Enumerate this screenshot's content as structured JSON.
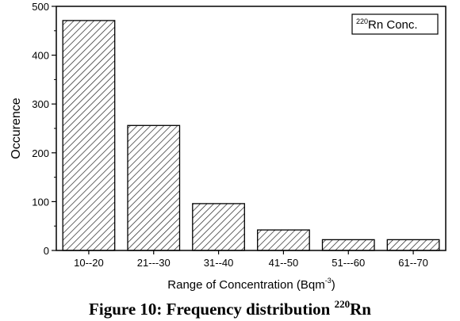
{
  "chart_data": {
    "type": "bar",
    "categories": [
      "10--20",
      "21---30",
      "31--40",
      "41--50",
      "51---60",
      "61--70"
    ],
    "values": [
      471,
      256,
      96,
      42,
      22,
      22
    ],
    "title": "",
    "xlabel": "Range of Concentration (Bqm",
    "xlabel_sup": "-3",
    "xlabel_suffix": ")",
    "ylabel": "Occurence",
    "ylim": [
      0,
      500
    ],
    "yticks": [
      0,
      100,
      200,
      300,
      400,
      500
    ],
    "legend": {
      "sup": "220",
      "label": "Rn Conc.",
      "placement": "top-right"
    },
    "bar_fill": "hatched",
    "grid": false
  },
  "caption": {
    "text": "Figure 10: Frequency distribution ",
    "sup": "220",
    "suffix": "Rn"
  }
}
